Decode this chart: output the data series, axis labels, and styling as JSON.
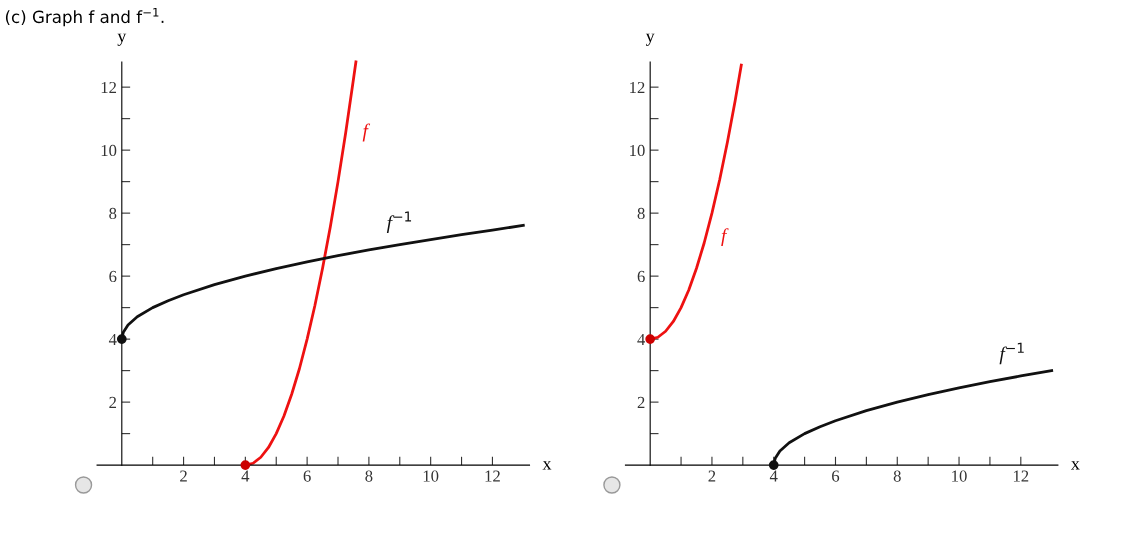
{
  "chart_data": [
    {
      "type": "line",
      "title": "(c) Graph f and f$^{−1}$.",
      "xlabel": "x",
      "ylabel": "y",
      "xlim": [
        -0.8,
        13.2
      ],
      "ylim": [
        0,
        12.8
      ],
      "xticks": [
        {
          "value": 1,
          "label": null
        },
        2,
        {
          "value": 3,
          "label": null
        },
        4,
        {
          "value": 5,
          "label": null
        },
        6,
        {
          "value": 7,
          "label": null
        },
        8,
        {
          "value": 9,
          "label": null
        },
        10,
        {
          "value": 11,
          "label": null
        },
        12
      ],
      "yticks": [
        {
          "value": 1,
          "label": null
        },
        2,
        {
          "value": 3,
          "label": null
        },
        4,
        {
          "value": 5,
          "label": null
        },
        6,
        {
          "value": 7,
          "label": null
        },
        8,
        {
          "value": 9,
          "label": null
        },
        10,
        {
          "value": 11,
          "label": null
        },
        12
      ],
      "grid": false,
      "legend": false,
      "series": [
        {
          "name": "f",
          "color": "#ee1111",
          "x": [
            4,
            4.25,
            4.5,
            4.75,
            5,
            5.25,
            5.5,
            5.75,
            6,
            6.25,
            6.5,
            6.75,
            7,
            7.25,
            7.5,
            7.58
          ],
          "values": [
            0,
            0.06,
            0.25,
            0.56,
            1,
            1.56,
            2.25,
            3.06,
            4,
            5.06,
            6.25,
            7.56,
            9,
            10.56,
            12.25,
            12.8
          ]
        },
        {
          "name": "f$^{−1}$",
          "color": "#111111",
          "x": [
            0,
            0.05,
            0.2,
            0.5,
            1,
            1.5,
            2,
            3,
            4,
            5,
            6,
            7,
            8,
            9,
            10,
            11,
            12,
            13
          ],
          "values": [
            4,
            4.22,
            4.45,
            4.71,
            5,
            5.22,
            5.41,
            5.73,
            6,
            6.24,
            6.45,
            6.65,
            6.83,
            7,
            7.16,
            7.32,
            7.46,
            7.61
          ]
        },
        {
          "type": "scatter",
          "color": "#cc0000",
          "x": [
            4
          ],
          "values": [
            0
          ]
        },
        {
          "type": "scatter",
          "color": "#111111",
          "x": [
            0
          ],
          "values": [
            4
          ]
        }
      ]
    },
    {
      "type": "line",
      "xlabel": "x",
      "ylabel": "y",
      "xlim": [
        -0.8,
        13.2
      ],
      "ylim": [
        0,
        12.8
      ],
      "xticks": [
        {
          "value": 1,
          "label": null
        },
        2,
        {
          "value": 3,
          "label": null
        },
        4,
        {
          "value": 5,
          "label": null
        },
        6,
        {
          "value": 7,
          "label": null
        },
        8,
        {
          "value": 9,
          "label": null
        },
        10,
        {
          "value": 11,
          "label": null
        },
        12
      ],
      "yticks": [
        {
          "value": 1,
          "label": null
        },
        2,
        {
          "value": 3,
          "label": null
        },
        4,
        {
          "value": 5,
          "label": null
        },
        6,
        {
          "value": 7,
          "label": null
        },
        8,
        {
          "value": 9,
          "label": null
        },
        10,
        {
          "value": 11,
          "label": null
        },
        12
      ],
      "grid": false,
      "legend": false,
      "series": [
        {
          "name": "f",
          "color": "#ee1111",
          "x": [
            0,
            0.25,
            0.5,
            0.75,
            1,
            1.25,
            1.5,
            1.75,
            2,
            2.25,
            2.5,
            2.75,
            2.95
          ],
          "values": [
            4,
            4.06,
            4.25,
            4.56,
            5,
            5.56,
            6.25,
            7.06,
            8,
            9.06,
            10.25,
            11.56,
            12.7
          ]
        },
        {
          "name": "f$^{−1}$",
          "color": "#111111",
          "x": [
            4,
            4.05,
            4.2,
            4.5,
            5,
            5.5,
            6,
            7,
            8,
            9,
            10,
            11,
            12,
            13
          ],
          "values": [
            0,
            0.22,
            0.45,
            0.71,
            1,
            1.22,
            1.41,
            1.73,
            2,
            2.24,
            2.45,
            2.65,
            2.83,
            3
          ]
        },
        {
          "type": "scatter",
          "color": "#cc0000",
          "x": [
            0
          ],
          "values": [
            4
          ]
        },
        {
          "type": "scatter",
          "color": "#111111",
          "x": [
            4
          ],
          "values": [
            0
          ]
        }
      ]
    }
  ]
}
